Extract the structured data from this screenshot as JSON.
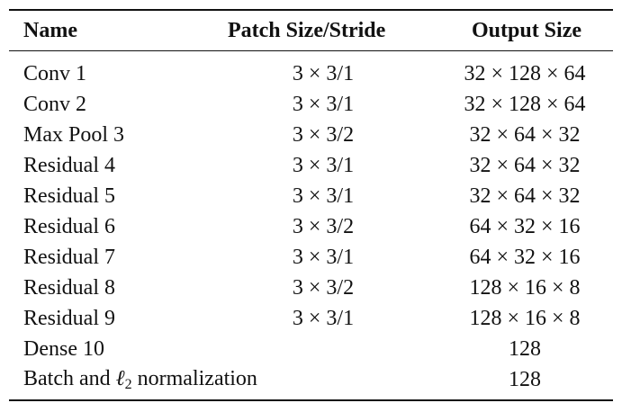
{
  "table": {
    "headers": {
      "name": "Name",
      "patch": "Patch Size/Stride",
      "output": "Output Size"
    },
    "rows": [
      {
        "name": "Conv 1",
        "patch": "3 × 3/1",
        "output": "32 × 128 × 64"
      },
      {
        "name": "Conv 2",
        "patch": "3 × 3/1",
        "output": "32 × 128 × 64"
      },
      {
        "name": "Max Pool 3",
        "patch": "3 × 3/2",
        "output": "32 × 64 × 32"
      },
      {
        "name": "Residual 4",
        "patch": "3 × 3/1",
        "output": "32 × 64 × 32"
      },
      {
        "name": "Residual 5",
        "patch": "3 × 3/1",
        "output": "32 × 64 × 32"
      },
      {
        "name": "Residual 6",
        "patch": "3 × 3/2",
        "output": "64 × 32 × 16"
      },
      {
        "name": "Residual 7",
        "patch": "3 × 3/1",
        "output": "64 × 32 × 16"
      },
      {
        "name": "Residual 8",
        "patch": "3 × 3/2",
        "output": "128 × 16 × 8"
      },
      {
        "name": "Residual 9",
        "patch": "3 × 3/1",
        "output": "128 × 16 × 8"
      },
      {
        "name": "Dense 10",
        "patch": "",
        "output": "128"
      }
    ],
    "last_row": {
      "name_prefix": "Batch and ",
      "norm_symbol": "ℓ",
      "norm_subscript": "2",
      "name_suffix": " normalization",
      "patch": "",
      "output": "128"
    }
  }
}
